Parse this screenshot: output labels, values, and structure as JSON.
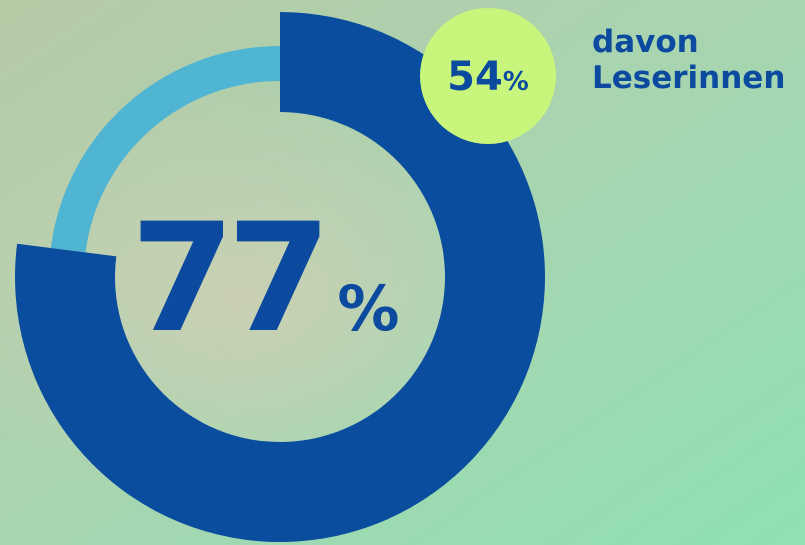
{
  "chart_data": {
    "type": "donut",
    "values": [
      77
    ],
    "unit": "%",
    "color": "#0a4c9e",
    "rest_color": "#4fb5d3",
    "badge": {
      "value": 54,
      "unit": "%",
      "color": "#c8f57c",
      "label_lines": [
        "davon",
        "Leserinnen"
      ]
    }
  }
}
